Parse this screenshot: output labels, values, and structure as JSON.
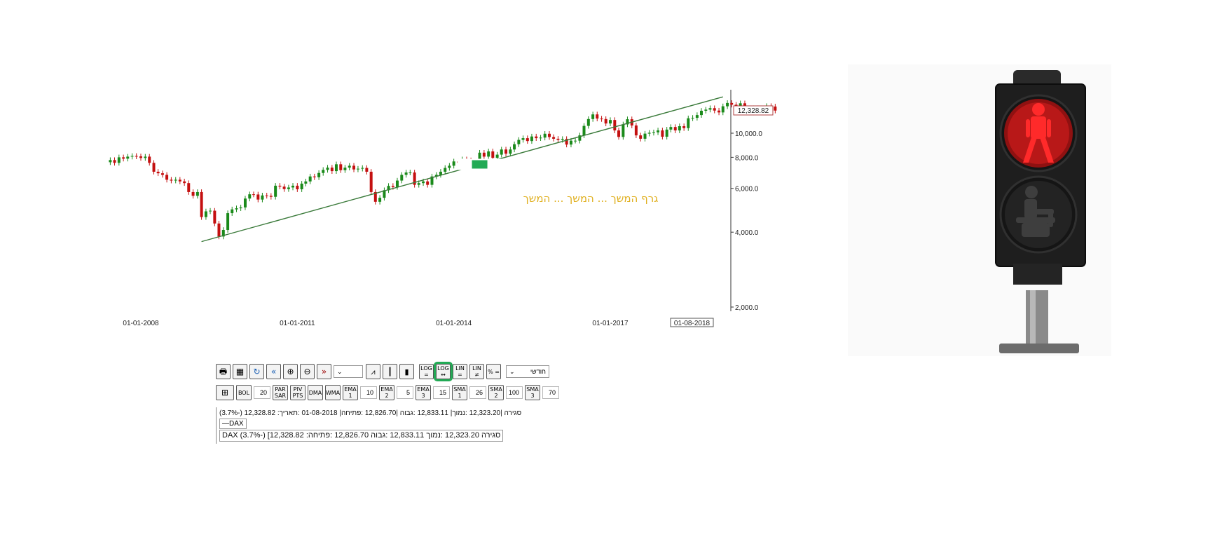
{
  "chart_data": {
    "type": "candlestick",
    "series_name": "DAX",
    "scale": "log",
    "y_ticks": [
      "2,000.0",
      "4,000.0",
      "6,000.0",
      "8,000.0",
      "10,000.0"
    ],
    "y_tick_values": [
      2000,
      4000,
      6000,
      8000,
      10000
    ],
    "x_ticks": [
      "01-01-2008",
      "01-01-2011",
      "01-01-2014",
      "01-01-2017"
    ],
    "x_tick_values": [
      "2008-01-01",
      "2011-01-01",
      "2014-01-01",
      "2017-01-01"
    ],
    "last_date_label": "01-08-2018",
    "last_value_label": "12,328.82",
    "x_range": [
      "2007-06-01",
      "2018-08-01"
    ],
    "y_range": [
      1900,
      14500
    ],
    "annotation_text": "גרף המשך  ...  המשך  ...  המשך",
    "trendline": {
      "from": {
        "date": "2009-03-01",
        "value": 3666
      },
      "to": {
        "date": "2019-03-01",
        "value": 14000
      }
    },
    "colors": {
      "up": "#1a8a1a",
      "down": "#c41010",
      "trend": "#3a7a3a",
      "annotation": "#e0b020",
      "marker": "#22aa55"
    },
    "monthly_close": [
      7800,
      7600,
      8000,
      7900,
      8050,
      8100,
      8070,
      7950,
      8050,
      7600,
      7000,
      6900,
      6800,
      6500,
      6450,
      6500,
      6400,
      6300,
      5800,
      5600,
      5800,
      4600,
      4850,
      4880,
      4335,
      3843,
      4084,
      4770,
      4940,
      4990,
      5030,
      5460,
      5680,
      5670,
      5410,
      5620,
      5600,
      5550,
      6150,
      6100,
      5960,
      6050,
      6150,
      5950,
      6270,
      6400,
      6700,
      6650,
      6920,
      7120,
      7270,
      7040,
      7500,
      7100,
      7270,
      7400,
      7150,
      7200,
      7250,
      7000,
      5800,
      5300,
      5500,
      5900,
      6140,
      6080,
      6450,
      6800,
      6950,
      6950,
      6200,
      6300,
      6400,
      6200,
      6700,
      6800,
      7000,
      7250,
      7400,
      7700,
      7600,
      7850,
      7780,
      7400,
      7620,
      8350,
      8050,
      8450,
      7960,
      8200,
      8600,
      8270,
      8600,
      9030,
      9400,
      9550,
      9300,
      9700,
      9550,
      9600,
      9950,
      9650,
      9500,
      9400,
      9480,
      9000,
      9330,
      9330,
      9800,
      10700,
      11400,
      11900,
      11450,
      11400,
      10940,
      11300,
      10260,
      9660,
      10850,
      11380,
      10740,
      9800,
      9500,
      9960,
      10040,
      10080,
      10260,
      9680,
      10340,
      10590,
      10260,
      10670,
      10480,
      11480,
      11530,
      11830,
      12310,
      12440,
      12610,
      12330,
      12120,
      12830,
      13230,
      13020,
      12920,
      13190,
      12440,
      12100,
      12610,
      12600,
      12300,
      12860,
      12800,
      12328
    ]
  },
  "toolbar": {
    "row1": [
      "",
      "",
      "",
      "",
      "",
      "",
      "",
      "",
      "",
      "",
      "LOG =",
      "LOG ↔",
      "LIN =",
      "LIN ≠",
      "% ="
    ],
    "period_select": "חודשי",
    "row2": [
      {
        "label": "BOL",
        "value": "20"
      },
      {
        "label": "PAR SAR",
        "value": ""
      },
      {
        "label": "PIV PTS",
        "value": ""
      },
      {
        "label": "DMA",
        "value": ""
      },
      {
        "label": "WMA",
        "value": ""
      },
      {
        "label": "EMA 1",
        "value": "10"
      },
      {
        "label": "EMA 2",
        "value": "5"
      },
      {
        "label": "EMA 3",
        "value": "15"
      },
      {
        "label": "SMA 1",
        "value": "26"
      },
      {
        "label": "SMA 2",
        "value": "100"
      },
      {
        "label": "SMA 3",
        "value": "70"
      }
    ]
  },
  "info": {
    "line1": "(3.7%-) 12,328.82 :סגירה |12,323.20 :נמוך| 12,833.11 :גבוה |12,826.70 :פתיחה| 01-08-2018 :תאריך",
    "legend_item": "—DAX",
    "line2": "DAX (3.7%-) [12,328.82 :סגירה  12,323.20 :נמוך  12,833.11 :גבוה  12,826.70 :פתיחה"
  },
  "traffic_light": {
    "top_lamp": "red-standing-figure",
    "bottom_lamp": "dark-sitting-figure",
    "colors": {
      "red": "#e01818",
      "housing": "#1c1c1c"
    }
  }
}
